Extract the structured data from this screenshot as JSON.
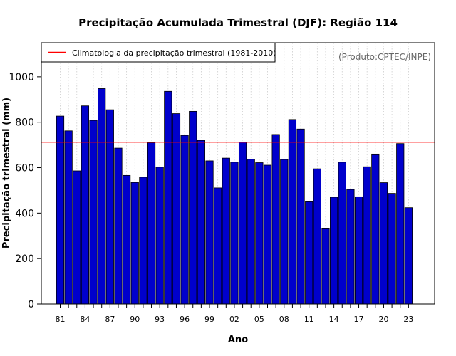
{
  "chart_data": {
    "type": "bar",
    "title": "Precipitação Acumulada Trimestral (DJF): Região 114",
    "xlabel": "Ano",
    "ylabel": "Precipitação trimestral (mm)",
    "credit": "(Produto:CPTEC/INPE)",
    "legend": {
      "label": "Climatologia da precipitação trimestral (1981-2010)",
      "placement": "top-left"
    },
    "climatology": 712,
    "ylim": [
      0,
      1150
    ],
    "yticks": [
      0,
      200,
      400,
      600,
      800,
      1000
    ],
    "categories": [
      "81",
      "82",
      "83",
      "84",
      "85",
      "86",
      "87",
      "88",
      "89",
      "90",
      "91",
      "92",
      "93",
      "94",
      "95",
      "96",
      "97",
      "98",
      "99",
      "00",
      "01",
      "02",
      "03",
      "04",
      "05",
      "06",
      "07",
      "08",
      "09",
      "10",
      "11",
      "12",
      "13",
      "14",
      "15",
      "16",
      "17",
      "18",
      "19",
      "20",
      "21",
      "22",
      "23"
    ],
    "xtick_labels": [
      "81",
      "84",
      "87",
      "90",
      "93",
      "96",
      "99",
      "02",
      "05",
      "08",
      "11",
      "14",
      "17",
      "20",
      "23"
    ],
    "values": [
      827,
      762,
      586,
      872,
      808,
      948,
      855,
      686,
      566,
      535,
      558,
      710,
      602,
      936,
      838,
      742,
      848,
      720,
      630,
      511,
      642,
      624,
      713,
      637,
      622,
      611,
      746,
      636,
      812,
      770,
      450,
      595,
      334,
      470,
      624,
      504,
      472,
      604,
      660,
      534,
      487,
      706,
      424
    ],
    "grid": "vertical-dotted",
    "colors": {
      "bar": "#0000cc",
      "bar_edge": "#000000",
      "climatology": "#ff0000",
      "grid": "#cccccc"
    }
  }
}
